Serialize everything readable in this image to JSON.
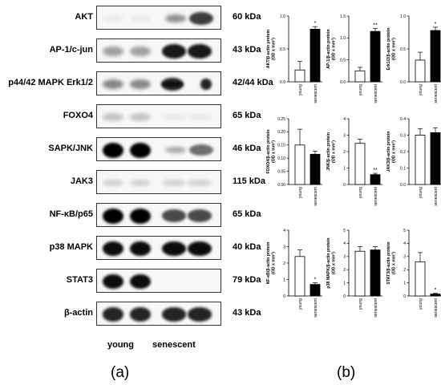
{
  "blots": [
    {
      "label": "AKT",
      "kda": "60 kDa",
      "young": 0.05,
      "senescent": 0.75,
      "sen_pattern": "rising"
    },
    {
      "label": "AP-1/c-jun",
      "kda": "43 kDa",
      "young": 0.35,
      "senescent": 0.9,
      "sen_pattern": "even"
    },
    {
      "label": "p44/42 MAPK Erk1/2",
      "kda": "42/44 kDa",
      "young": 0.45,
      "senescent": 0.85,
      "sen_pattern": "double"
    },
    {
      "label": "FOXO4",
      "kda": "65 kDa",
      "young": 0.2,
      "senescent": 0.05,
      "sen_pattern": "even"
    },
    {
      "label": "SAPK/JNK",
      "kda": "46 kDa",
      "young": 1.0,
      "senescent": 0.55,
      "sen_pattern": "rising"
    },
    {
      "label": "JAK3",
      "kda": "115 kDa",
      "young": 0.15,
      "senescent": 0.15,
      "sen_pattern": "even"
    },
    {
      "label": "NF-κB/p65",
      "kda": "65 kDa",
      "young": 1.0,
      "senescent": 0.7,
      "sen_pattern": "even"
    },
    {
      "label": "p38 MAPK",
      "kda": "40 kDa",
      "young": 0.95,
      "senescent": 0.95,
      "sen_pattern": "even"
    },
    {
      "label": "STAT3",
      "kda": "79 kDa",
      "young": 0.95,
      "senescent": 0.0,
      "sen_pattern": "even"
    },
    {
      "label": "β-actin",
      "kda": "43 kDa",
      "young": 0.85,
      "senescent": 0.85,
      "sen_pattern": "even"
    }
  ],
  "lanes": {
    "young": "young",
    "senescent": "senescent"
  },
  "captions": {
    "a": "(a)",
    "b": "(b)"
  },
  "chart_data": [
    {
      "type": "bar",
      "ylabel": "AKT/β-actin protein (OD x mm²)",
      "categories": [
        "young",
        "senescent"
      ],
      "values": [
        0.18,
        0.8
      ],
      "errors": [
        0.13,
        0.04
      ],
      "ylim": [
        0,
        1.0
      ],
      "yticks": [
        "0.0",
        "0.5",
        "1.0"
      ],
      "sig": "*"
    },
    {
      "type": "bar",
      "ylabel": "AP-1/β-actin protein (OD x mm²)",
      "categories": [
        "young",
        "senescent"
      ],
      "values": [
        0.25,
        1.15
      ],
      "errors": [
        0.08,
        0.07
      ],
      "ylim": [
        0,
        1.5
      ],
      "yticks": [
        "0.0",
        "0.5",
        "1.0",
        "1.5"
      ],
      "sig": "**"
    },
    {
      "type": "bar",
      "ylabel": "Erk1/2/β-actin protein (OD x mm²)",
      "categories": [
        "young",
        "senescent"
      ],
      "values": [
        0.33,
        0.78
      ],
      "errors": [
        0.12,
        0.05
      ],
      "ylim": [
        0,
        1.0
      ],
      "yticks": [
        "0.0",
        "0.5",
        "1.0"
      ],
      "sig": "*"
    },
    {
      "type": "bar",
      "ylabel": "FOXO4/β-actin protein (OD x mm²)",
      "categories": [
        "young",
        "senescent"
      ],
      "values": [
        0.15,
        0.115
      ],
      "errors": [
        0.06,
        0.012
      ],
      "ylim": [
        0,
        0.25
      ],
      "yticks": [
        "0.00",
        "0.05",
        "0.10",
        "0.15",
        "0.20",
        "0.25"
      ],
      "sig": ""
    },
    {
      "type": "bar",
      "ylabel": "JNK/β-actin protein (OD x mm²)",
      "categories": [
        "young",
        "senescent"
      ],
      "values": [
        2.5,
        0.6
      ],
      "errors": [
        0.25,
        0.08
      ],
      "ylim": [
        0,
        4
      ],
      "yticks": [
        "0",
        "1",
        "2",
        "3",
        "4"
      ],
      "sig": "**"
    },
    {
      "type": "bar",
      "ylabel": "JAK3/β-actin protein (OD x mm²)",
      "categories": [
        "young",
        "senescent"
      ],
      "values": [
        0.3,
        0.315
      ],
      "errors": [
        0.04,
        0.03
      ],
      "ylim": [
        0,
        0.4
      ],
      "yticks": [
        "0.0",
        "0.1",
        "0.2",
        "0.3",
        "0.4"
      ],
      "sig": ""
    },
    {
      "type": "bar",
      "ylabel": "NF-κB/β-actin protein (OD x mm²)",
      "categories": [
        "young",
        "senescent"
      ],
      "values": [
        2.4,
        0.7
      ],
      "errors": [
        0.4,
        0.1
      ],
      "ylim": [
        0,
        4
      ],
      "yticks": [
        "0",
        "1",
        "2",
        "3",
        "4"
      ],
      "sig": "*"
    },
    {
      "type": "bar",
      "ylabel": "p38 MAPK/β-actin protein (OD x mm²)",
      "categories": [
        "young",
        "senescent"
      ],
      "values": [
        3.4,
        3.5
      ],
      "errors": [
        0.35,
        0.25
      ],
      "ylim": [
        0,
        5
      ],
      "yticks": [
        "0",
        "1",
        "2",
        "3",
        "4",
        "5"
      ],
      "sig": ""
    },
    {
      "type": "bar",
      "ylabel": "STAT3/β-actin protein (OD x mm²)",
      "categories": [
        "young",
        "senescent"
      ],
      "values": [
        2.6,
        0.15
      ],
      "errors": [
        0.7,
        0.05
      ],
      "ylim": [
        0,
        5
      ],
      "yticks": [
        "0",
        "1",
        "2",
        "3",
        "4",
        "5"
      ],
      "sig": "*"
    }
  ]
}
